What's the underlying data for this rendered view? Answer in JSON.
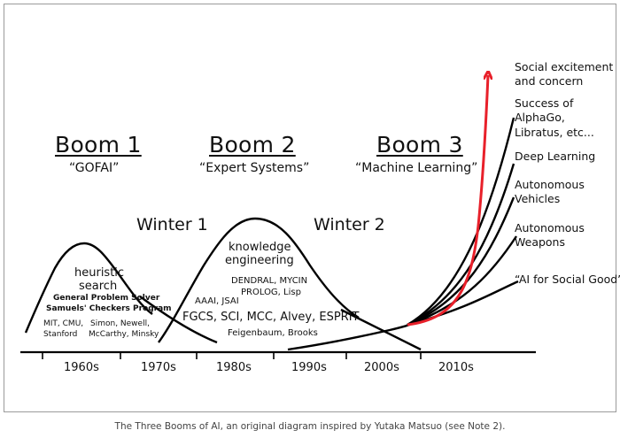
{
  "booms": [
    {
      "title": "Boom 1",
      "subtitle": "“GOFAI”"
    },
    {
      "title": "Boom 2",
      "subtitle": "“Expert Systems”"
    },
    {
      "title": "Boom 3",
      "subtitle": "“Machine Learning”"
    }
  ],
  "winters": [
    "Winter 1",
    "Winter 2"
  ],
  "boom1_labels": {
    "heuristic": "heuristic",
    "search": "search",
    "gps": "General Problem Solver",
    "samuels": "Samuels' Checkers Program",
    "mit": "MIT, CMU,",
    "stanford": "Stanford",
    "people1": "Simon, Newell,",
    "people2": "McCarthy, Minsky"
  },
  "boom2_labels": {
    "knowledge": "knowledge",
    "engineering": "engineering",
    "dendral": "DENDRAL, MYCIN",
    "prolog": "PROLOG, Lisp",
    "aaai": "AAAI, JSAI",
    "fgcs": "FGCS, SCI, MCC, Alvey, ESPRIT",
    "feigenbaum": "Feigenbaum, Brooks"
  },
  "boom3_annotations": [
    {
      "line1": "Social excitement",
      "line2": "and concern"
    },
    {
      "line1": "Success of",
      "line2": "AlphaGo,",
      "line3": "Libratus, etc..."
    },
    {
      "line1": "Deep Learning"
    },
    {
      "line1": "Autonomous",
      "line2": "Vehicles"
    },
    {
      "line1": "Autonomous",
      "line2": "Weapons"
    },
    {
      "line1": "“AI for Social Good”?"
    }
  ],
  "axis_ticks": [
    "1960s",
    "1970s",
    "1980s",
    "1990s",
    "2000s",
    "2010s"
  ],
  "caption": "The Three Booms of AI, an original diagram inspired by Yutaka Matsuo (see Note 2).",
  "colors": {
    "curve": "#000000",
    "highlight": "#e8202a"
  }
}
